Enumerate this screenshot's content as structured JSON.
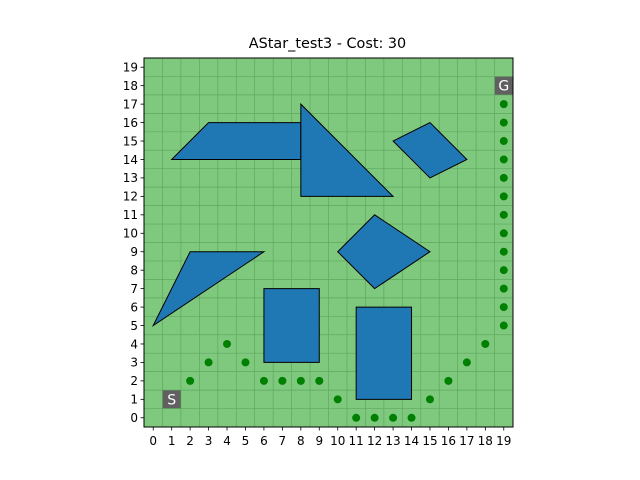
{
  "chart_data": {
    "type": "scatter",
    "title": "AStar_test3 - Cost: 30",
    "xlabel": "",
    "ylabel": "",
    "xlim": [
      -0.5,
      19.5
    ],
    "ylim": [
      -0.5,
      19.5
    ],
    "x_ticks": [
      0,
      1,
      2,
      3,
      4,
      5,
      6,
      7,
      8,
      9,
      10,
      11,
      12,
      13,
      14,
      15,
      16,
      17,
      18,
      19
    ],
    "y_ticks": [
      0,
      1,
      2,
      3,
      4,
      5,
      6,
      7,
      8,
      9,
      10,
      11,
      12,
      13,
      14,
      15,
      16,
      17,
      18,
      19
    ],
    "grid": true,
    "background_color": "#7fc97f",
    "grid_color": "#5fa85f",
    "obstacle_color": "#1f77b4",
    "obstacle_edge_color": "#000000",
    "path_color": "#008000",
    "marker_box_color": "#606060",
    "obstacles": [
      {
        "name": "trapezoid",
        "points": [
          [
            1,
            14
          ],
          [
            3,
            16
          ],
          [
            8,
            16
          ],
          [
            8,
            14
          ]
        ]
      },
      {
        "name": "right-triangle",
        "points": [
          [
            8,
            17
          ],
          [
            8,
            12
          ],
          [
            13,
            12
          ]
        ]
      },
      {
        "name": "diamond-top-right",
        "points": [
          [
            13,
            15
          ],
          [
            15,
            16
          ],
          [
            17,
            14
          ],
          [
            15,
            13
          ]
        ]
      },
      {
        "name": "diamond-center",
        "points": [
          [
            10,
            9
          ],
          [
            12,
            11
          ],
          [
            15,
            9
          ],
          [
            12,
            7
          ]
        ]
      },
      {
        "name": "left-triangle",
        "points": [
          [
            0,
            5
          ],
          [
            2,
            9
          ],
          [
            6,
            9
          ]
        ]
      },
      {
        "name": "rect-left",
        "points": [
          [
            6,
            3
          ],
          [
            6,
            7
          ],
          [
            9,
            7
          ],
          [
            9,
            3
          ]
        ]
      },
      {
        "name": "rect-right",
        "points": [
          [
            11,
            1
          ],
          [
            11,
            6
          ],
          [
            14,
            6
          ],
          [
            14,
            1
          ]
        ]
      }
    ],
    "path": [
      [
        2,
        2
      ],
      [
        3,
        3
      ],
      [
        4,
        4
      ],
      [
        5,
        3
      ],
      [
        6,
        2
      ],
      [
        7,
        2
      ],
      [
        8,
        2
      ],
      [
        9,
        2
      ],
      [
        10,
        1
      ],
      [
        11,
        0
      ],
      [
        12,
        0
      ],
      [
        13,
        0
      ],
      [
        14,
        0
      ],
      [
        15,
        1
      ],
      [
        16,
        2
      ],
      [
        17,
        3
      ],
      [
        18,
        4
      ],
      [
        19,
        5
      ],
      [
        19,
        6
      ],
      [
        19,
        7
      ],
      [
        19,
        8
      ],
      [
        19,
        9
      ],
      [
        19,
        10
      ],
      [
        19,
        11
      ],
      [
        19,
        12
      ],
      [
        19,
        13
      ],
      [
        19,
        14
      ],
      [
        19,
        15
      ],
      [
        19,
        16
      ],
      [
        19,
        17
      ]
    ],
    "start": {
      "label": "S",
      "x": 1,
      "y": 1
    },
    "goal": {
      "label": "G",
      "x": 19,
      "y": 18
    }
  }
}
